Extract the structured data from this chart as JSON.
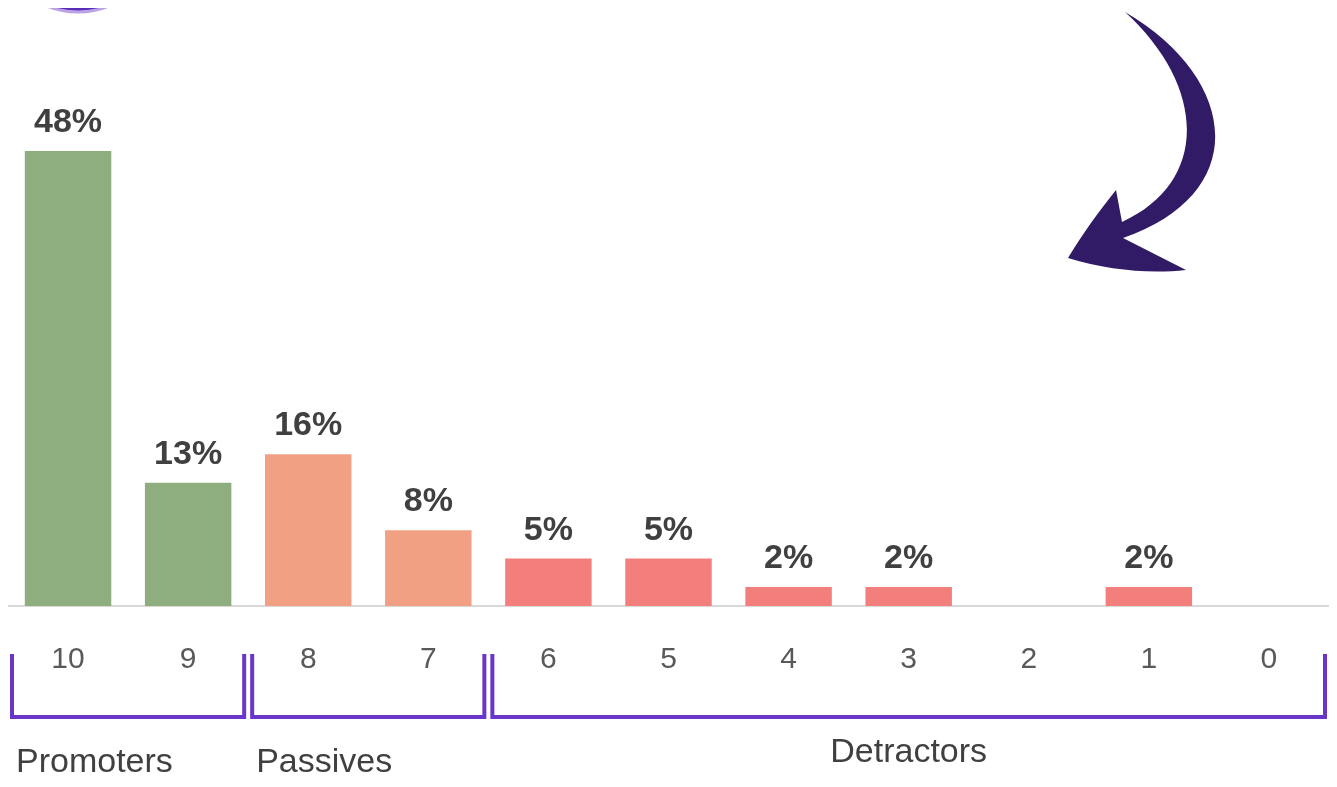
{
  "chart_data": {
    "type": "bar",
    "categories": [
      "10",
      "9",
      "8",
      "7",
      "6",
      "5",
      "4",
      "3",
      "2",
      "1",
      "0"
    ],
    "values": [
      48,
      13,
      16,
      8,
      5,
      5,
      2,
      2,
      0,
      2,
      0
    ],
    "colors": [
      "#8fae80",
      "#8fae80",
      "#f2a083",
      "#f2a083",
      "#f27f7c",
      "#f27f7c",
      "#f27f7c",
      "#f27f7c",
      "#f27f7c",
      "#f27f7c",
      "#f27f7c"
    ],
    "value_labels": [
      "48%",
      "13%",
      "16%",
      "8%",
      "5%",
      "5%",
      "2%",
      "2%",
      null,
      "2%",
      null
    ],
    "annotations": [
      "Promoters",
      "Passives",
      "Detractors"
    ]
  }
}
